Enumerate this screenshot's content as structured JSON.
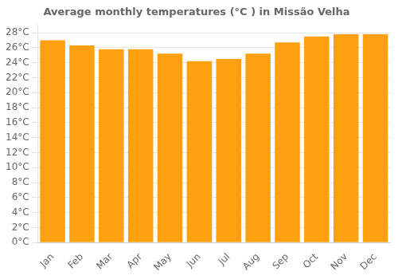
{
  "chart_data": {
    "type": "bar",
    "title": "Average monthly temperatures (°C ) in Missão Velha",
    "categories": [
      "Jan",
      "Feb",
      "Mar",
      "Apr",
      "May",
      "Jun",
      "Jul",
      "Aug",
      "Sep",
      "Oct",
      "Nov",
      "Dec"
    ],
    "values": [
      27.0,
      26.3,
      25.8,
      25.8,
      25.2,
      24.2,
      24.5,
      25.2,
      26.7,
      27.5,
      27.8,
      27.8
    ],
    "color": "#FFA010",
    "ylim": [
      0,
      29
    ],
    "yticks": [
      {
        "value": 0,
        "label": "0°C"
      },
      {
        "value": 2,
        "label": "2°C"
      },
      {
        "value": 4,
        "label": "4°C"
      },
      {
        "value": 6,
        "label": "6°C"
      },
      {
        "value": 8,
        "label": "8°C"
      },
      {
        "value": 10,
        "label": "10°C"
      },
      {
        "value": 12,
        "label": "12°C"
      },
      {
        "value": 14,
        "label": "14°C"
      },
      {
        "value": 16,
        "label": "16°C"
      },
      {
        "value": 18,
        "label": "18°C"
      },
      {
        "value": 20,
        "label": "20°C"
      },
      {
        "value": 22,
        "label": "22°C"
      },
      {
        "value": 24,
        "label": "24°C"
      },
      {
        "value": 26,
        "label": "26°C"
      },
      {
        "value": 28,
        "label": "28°C"
      }
    ],
    "grid": true
  }
}
